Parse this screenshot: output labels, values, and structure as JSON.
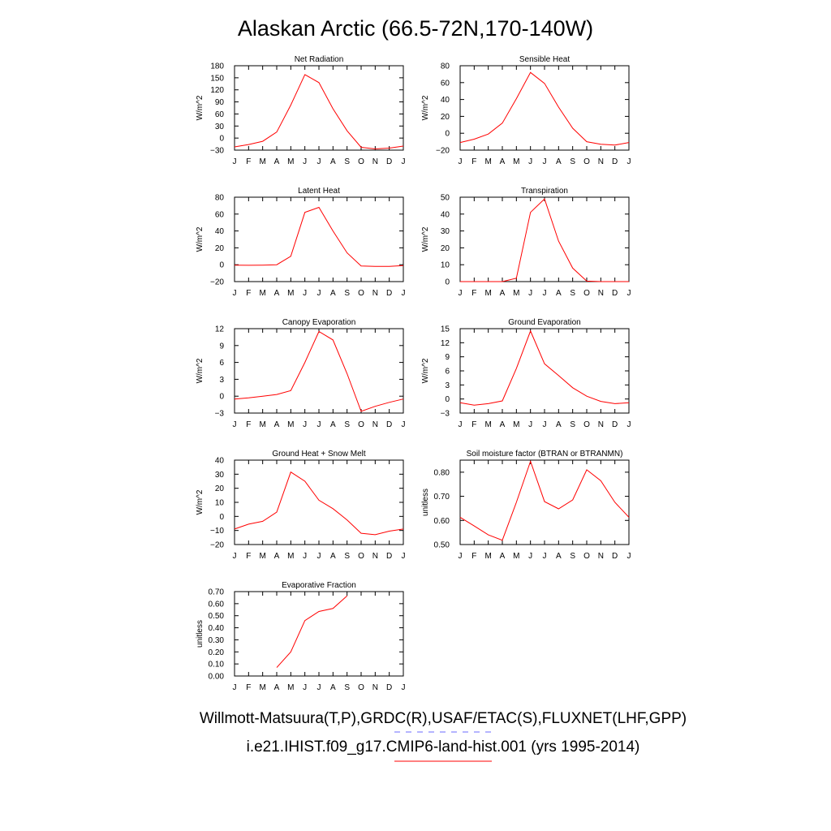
{
  "figure": {
    "title": "Alaskan Arctic (66.5-72N,170-140W)",
    "footer_line1": "Willmott-Matsuura(T,P),GRDC(R),USAF/ETAC(S),FLUXNET(LHF,GPP)",
    "footer_line2": "i.e21.IHIST.f09_g17.CMIP6-land-hist.001 (yrs 1995-2014)",
    "obs_line_color": "#6b6bff",
    "model_line_color": "#ff0000"
  },
  "chart_data": [
    {
      "type": "line",
      "title": "Net Radiation",
      "ylabel": "W/m^2",
      "categories": [
        "J",
        "F",
        "M",
        "A",
        "M",
        "J",
        "J",
        "A",
        "S",
        "O",
        "N",
        "D",
        "J"
      ],
      "ylim": [
        -30,
        180
      ],
      "yticks": [
        -30,
        0,
        30,
        60,
        90,
        120,
        150,
        180
      ],
      "ytick_labels": [
        "−30",
        "0",
        "30",
        "60",
        "90",
        "120",
        "150",
        "180"
      ],
      "grid": false,
      "series": [
        {
          "color": "#ff0000",
          "values": [
            -22,
            -16,
            -8,
            15,
            82,
            158,
            138,
            73,
            18,
            -23,
            -27,
            -25,
            -20
          ]
        }
      ]
    },
    {
      "type": "line",
      "title": "Sensible Heat",
      "ylabel": "W/m^2",
      "categories": [
        "J",
        "F",
        "M",
        "A",
        "M",
        "J",
        "J",
        "A",
        "S",
        "O",
        "N",
        "D",
        "J"
      ],
      "ylim": [
        -20,
        80
      ],
      "yticks": [
        -20,
        0,
        20,
        40,
        60,
        80
      ],
      "ytick_labels": [
        "−20",
        "0",
        "20",
        "40",
        "60",
        "80"
      ],
      "grid": false,
      "series": [
        {
          "color": "#ff0000",
          "values": [
            -11,
            -7,
            -1,
            12,
            41,
            72,
            59,
            31,
            6,
            -10,
            -13,
            -14,
            -11
          ]
        }
      ]
    },
    {
      "type": "line",
      "title": "Latent Heat",
      "ylabel": "W/m^2",
      "categories": [
        "J",
        "F",
        "M",
        "A",
        "M",
        "J",
        "J",
        "A",
        "S",
        "O",
        "N",
        "D",
        "J"
      ],
      "ylim": [
        -20,
        80
      ],
      "yticks": [
        -20,
        0,
        20,
        40,
        60,
        80
      ],
      "ytick_labels": [
        "−20",
        "0",
        "20",
        "40",
        "60",
        "80"
      ],
      "grid": false,
      "series": [
        {
          "color": "#ff0000",
          "values": [
            -0.5,
            -0.7,
            -0.5,
            0,
            10,
            62,
            68,
            40,
            14,
            -1.5,
            -2,
            -2,
            -1
          ]
        }
      ]
    },
    {
      "type": "line",
      "title": "Transpiration",
      "ylabel": "W/m^2",
      "categories": [
        "J",
        "F",
        "M",
        "A",
        "M",
        "J",
        "J",
        "A",
        "S",
        "O",
        "N",
        "D",
        "J"
      ],
      "ylim": [
        0,
        50
      ],
      "yticks": [
        0,
        10,
        20,
        30,
        40,
        50
      ],
      "ytick_labels": [
        "0",
        "10",
        "20",
        "30",
        "40",
        "50"
      ],
      "grid": false,
      "series": [
        {
          "color": "#ff0000",
          "values": [
            0,
            0,
            0,
            0,
            2,
            41,
            49,
            24,
            8,
            0.3,
            0,
            0,
            0
          ]
        }
      ]
    },
    {
      "type": "line",
      "title": "Canopy Evaporation",
      "ylabel": "W/m^2",
      "categories": [
        "J",
        "F",
        "M",
        "A",
        "M",
        "J",
        "J",
        "A",
        "S",
        "O",
        "N",
        "D",
        "J"
      ],
      "ylim": [
        -3,
        12
      ],
      "yticks": [
        -3,
        0,
        3,
        6,
        9,
        12
      ],
      "ytick_labels": [
        "−3",
        "0",
        "3",
        "6",
        "9",
        "12"
      ],
      "grid": false,
      "series": [
        {
          "color": "#ff0000",
          "values": [
            -0.5,
            -0.3,
            0,
            0.3,
            1,
            6,
            11.5,
            10,
            4,
            -2.7,
            -1.8,
            -1.1,
            -0.5
          ]
        }
      ]
    },
    {
      "type": "line",
      "title": "Ground Evaporation",
      "ylabel": "W/m^2",
      "categories": [
        "J",
        "F",
        "M",
        "A",
        "M",
        "J",
        "J",
        "A",
        "S",
        "O",
        "N",
        "D",
        "J"
      ],
      "ylim": [
        -3,
        15
      ],
      "yticks": [
        -3,
        0,
        3,
        6,
        9,
        12,
        15
      ],
      "ytick_labels": [
        "−3",
        "0",
        "3",
        "6",
        "9",
        "12",
        "15"
      ],
      "grid": false,
      "series": [
        {
          "color": "#ff0000",
          "values": [
            -0.8,
            -1.3,
            -1,
            -0.4,
            6.5,
            14.5,
            7.5,
            5,
            2.4,
            0.6,
            -0.5,
            -1,
            -0.8
          ]
        }
      ]
    },
    {
      "type": "line",
      "title": "Ground Heat + Snow Melt",
      "ylabel": "W/m^2",
      "categories": [
        "J",
        "F",
        "M",
        "A",
        "M",
        "J",
        "J",
        "A",
        "S",
        "O",
        "N",
        "D",
        "J"
      ],
      "ylim": [
        -20,
        40
      ],
      "yticks": [
        -20,
        -10,
        0,
        10,
        20,
        30,
        40
      ],
      "ytick_labels": [
        "−20",
        "−10",
        "0",
        "10",
        "20",
        "30",
        "40"
      ],
      "grid": false,
      "series": [
        {
          "color": "#ff0000",
          "values": [
            -9,
            -5.5,
            -3.5,
            3,
            31.5,
            25,
            11.5,
            5.5,
            -2.5,
            -12,
            -13,
            -10.5,
            -9
          ]
        }
      ]
    },
    {
      "type": "line",
      "title": "Soil moisture factor (BTRAN or BTRANMN)",
      "ylabel": "unitless",
      "categories": [
        "J",
        "F",
        "M",
        "A",
        "M",
        "J",
        "J",
        "A",
        "S",
        "O",
        "N",
        "D",
        "J"
      ],
      "ylim": [
        0.5,
        0.85
      ],
      "yticks": [
        0.5,
        0.6,
        0.7,
        0.8
      ],
      "ytick_labels": [
        "0.50",
        "0.60",
        "0.70",
        "0.80"
      ],
      "grid": false,
      "series": [
        {
          "color": "#ff0000",
          "values": [
            0.613,
            0.577,
            0.54,
            0.518,
            0.675,
            0.845,
            0.678,
            0.648,
            0.685,
            0.81,
            0.765,
            0.675,
            0.613
          ]
        }
      ]
    },
    {
      "type": "line",
      "title": "Evaporative Fraction",
      "ylabel": "unitless",
      "categories": [
        "J",
        "F",
        "M",
        "A",
        "M",
        "J",
        "J",
        "A",
        "S",
        "O",
        "N",
        "D",
        "J"
      ],
      "ylim": [
        0,
        0.7
      ],
      "yticks": [
        0,
        0.1,
        0.2,
        0.3,
        0.4,
        0.5,
        0.6,
        0.7
      ],
      "ytick_labels": [
        "0.00",
        "0.10",
        "0.20",
        "0.30",
        "0.40",
        "0.50",
        "0.60",
        "0.70"
      ],
      "grid": false,
      "series": [
        {
          "color": "#ff0000",
          "values": [
            null,
            null,
            null,
            0.07,
            0.2,
            0.46,
            0.535,
            0.56,
            0.665,
            null,
            null,
            null,
            null
          ]
        }
      ]
    }
  ]
}
